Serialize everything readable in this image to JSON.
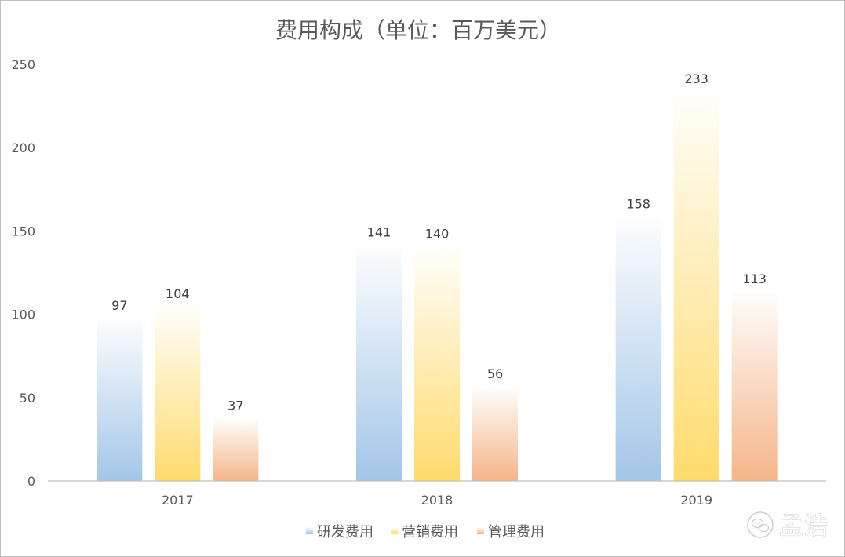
{
  "chart_data": {
    "type": "bar",
    "title": "费用构成（单位：百万美元）",
    "categories": [
      "2017",
      "2018",
      "2019"
    ],
    "series": [
      {
        "name": "研发费用",
        "values": [
          97,
          141,
          158
        ],
        "color": "#9fc3e6"
      },
      {
        "name": "营销费用",
        "values": [
          104,
          140,
          233
        ],
        "color": "#ffd966"
      },
      {
        "name": "管理费用",
        "values": [
          37,
          56,
          113
        ],
        "color": "#f4b183"
      }
    ],
    "ylim": [
      0,
      250
    ],
    "yticks": [
      "0",
      "50",
      "100",
      "150",
      "200",
      "250"
    ],
    "grid": false,
    "legend": "bottom",
    "data_labels": true
  },
  "watermark": {
    "text": "孟浩",
    "icon": "wechat-circle-icon"
  }
}
